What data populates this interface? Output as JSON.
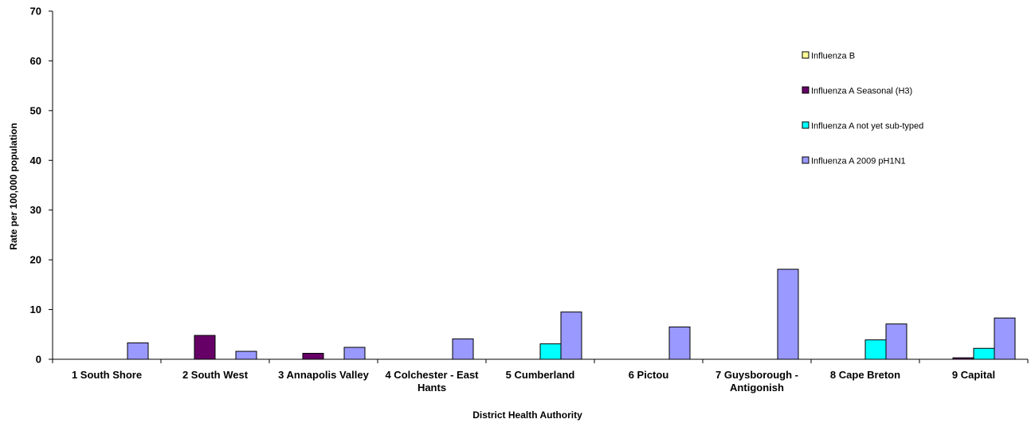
{
  "chart_data": {
    "type": "bar",
    "title": "",
    "xlabel": "District Health Authority",
    "ylabel": "Rate per 100,000 population",
    "ylim": [
      0,
      70
    ],
    "yticks": [
      0,
      10,
      20,
      30,
      40,
      50,
      60,
      70
    ],
    "grid": false,
    "legend_position": "right",
    "categories": [
      [
        "1 South Shore"
      ],
      [
        "2 South West"
      ],
      [
        "3 Annapolis Valley"
      ],
      [
        "4 Colchester - East",
        "Hants"
      ],
      [
        "5 Cumberland"
      ],
      [
        "6 Pictou"
      ],
      [
        "7 Guysborough -",
        "Antigonish"
      ],
      [
        "8 Cape Breton"
      ],
      [
        "9 Capital"
      ]
    ],
    "series": [
      {
        "name": "Influenza B",
        "color": "#ffff99",
        "values": [
          0,
          0,
          0,
          0,
          0,
          0,
          0,
          0,
          0
        ]
      },
      {
        "name": "Influenza A Seasonal (H3)",
        "color": "#660066",
        "values": [
          0,
          4.8,
          1.2,
          0,
          0,
          0,
          0,
          0,
          0.3
        ]
      },
      {
        "name": "Influenza A not yet sub-typed",
        "color": "#00ffff",
        "values": [
          0,
          0,
          0,
          0,
          3.1,
          0,
          0,
          3.9,
          2.2
        ]
      },
      {
        "name": "Influenza A 2009 pH1N1",
        "color": "#9999ff",
        "values": [
          3.3,
          1.6,
          2.4,
          4.1,
          9.5,
          6.5,
          18.1,
          7.1,
          8.3
        ]
      }
    ],
    "legend_order": [
      0,
      1,
      2,
      3
    ]
  }
}
